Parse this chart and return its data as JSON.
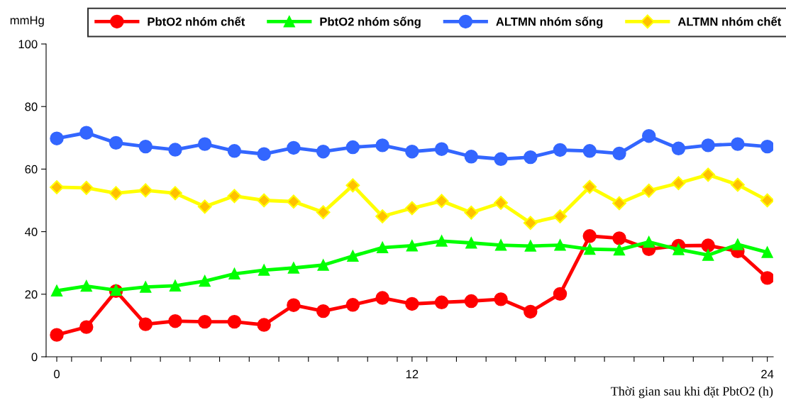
{
  "chart_data": {
    "type": "line",
    "ylabel": "mmHg",
    "xlabel": "Thời gian sau khi đặt PbtO2 (h)",
    "x": [
      0,
      1,
      2,
      3,
      4,
      5,
      6,
      7,
      8,
      9,
      10,
      11,
      12,
      13,
      14,
      15,
      16,
      17,
      18,
      19,
      20,
      21,
      22,
      23,
      24
    ],
    "xlim": [
      -0.36,
      24.2
    ],
    "xticks": [
      0,
      {
        "value": 0.5,
        "label": null
      },
      {
        "value": 1.5,
        "label": null
      },
      {
        "value": 2.5,
        "label": null
      },
      {
        "value": 3.5,
        "label": null
      },
      {
        "value": 4.5,
        "label": null
      },
      {
        "value": 5.5,
        "label": null
      },
      {
        "value": 6.5,
        "label": null
      },
      {
        "value": 7.5,
        "label": null
      },
      {
        "value": 8.5,
        "label": null
      },
      {
        "value": 9.5,
        "label": null
      },
      {
        "value": 10.5,
        "label": null
      },
      {
        "value": 11.5,
        "label": null
      },
      12,
      {
        "value": 12.5,
        "label": null
      },
      {
        "value": 13.5,
        "label": null
      },
      {
        "value": 14.5,
        "label": null
      },
      {
        "value": 15.5,
        "label": null
      },
      {
        "value": 16.5,
        "label": null
      },
      {
        "value": 17.5,
        "label": null
      },
      {
        "value": 18.5,
        "label": null
      },
      {
        "value": 19.5,
        "label": null
      },
      {
        "value": 20.5,
        "label": null
      },
      {
        "value": 21.5,
        "label": null
      },
      {
        "value": 22.5,
        "label": null
      },
      {
        "value": 23.5,
        "label": null
      },
      24
    ],
    "ylim": [
      0,
      100
    ],
    "yticks": [
      0,
      20,
      40,
      60,
      80,
      100
    ],
    "grid": false,
    "legend": "top",
    "line_style": "solid",
    "series": [
      {
        "name": "PbtO2 nhóm chết",
        "color": "#ff0000",
        "marker": "circle",
        "values": [
          7,
          9.5,
          21,
          10.4,
          11.4,
          11.2,
          11.2,
          10.2,
          16.5,
          14.6,
          16.6,
          18.8,
          16.9,
          17.4,
          17.8,
          18.4,
          14.4,
          20.1,
          38.6,
          37.9,
          34.4,
          35.5,
          35.6,
          33.7,
          25.2
        ]
      },
      {
        "name": "PbtO2 nhóm sống",
        "color": "#00ff00",
        "marker": "triangle",
        "values": [
          21.1,
          22.6,
          21.3,
          22.3,
          22.7,
          24.2,
          26.5,
          27.7,
          28.4,
          29.3,
          32.2,
          34.9,
          35.5,
          37,
          36.4,
          35.7,
          35.4,
          35.7,
          34.4,
          34.2,
          36.7,
          34.3,
          32.5,
          35.9,
          33.4
        ]
      },
      {
        "name": "ALTMN nhóm sống",
        "color": "#3366ff",
        "marker": "circle",
        "values": [
          69.8,
          71.6,
          68.4,
          67.2,
          66.2,
          68,
          65.8,
          64.8,
          66.8,
          65.6,
          67,
          67.6,
          65.6,
          66.4,
          64,
          63.2,
          63.8,
          66.1,
          65.8,
          65,
          70.6,
          66.6,
          67.6,
          68,
          67.2
        ]
      },
      {
        "name": "ALTMN nhóm chết",
        "color": "#ffff00",
        "marker": "diamond",
        "values": [
          54.2,
          54,
          52.3,
          53.2,
          52.3,
          48,
          51.4,
          50,
          49.6,
          46.2,
          54.8,
          44.9,
          47.5,
          49.8,
          46.1,
          49.2,
          42.8,
          44.9,
          54.3,
          49.1,
          53.1,
          55.5,
          58.2,
          55,
          50
        ]
      }
    ]
  }
}
